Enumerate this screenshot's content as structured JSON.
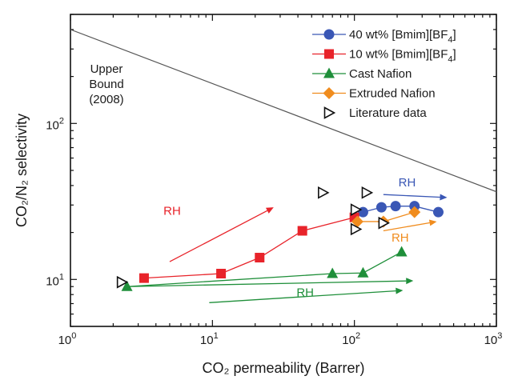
{
  "chart_data": {
    "type": "scatter",
    "x_scale": "log",
    "y_scale": "log",
    "xlim": [
      1,
      1000
    ],
    "ylim": [
      5,
      500
    ],
    "xlabel": "CO₂ permeability (Barrer)",
    "ylabel": "CO₂/N₂ selectivity",
    "x_ticks": [
      {
        "value": 1,
        "base": "10",
        "exp": "0"
      },
      {
        "value": 10,
        "base": "10",
        "exp": "1"
      },
      {
        "value": 100,
        "base": "10",
        "exp": "2"
      },
      {
        "value": 1000,
        "base": "10",
        "exp": "3"
      }
    ],
    "y_ticks": [
      {
        "value": 10,
        "base": "10",
        "exp": "1"
      },
      {
        "value": 100,
        "base": "10",
        "exp": "2"
      }
    ],
    "legend_position": "top-right",
    "series": [
      {
        "name": "40 wt% [Bmim][BF₄]",
        "color": "#3a57b5",
        "marker": "circle",
        "connected": true,
        "x": [
          115,
          155,
          195,
          265,
          390
        ],
        "y": [
          27,
          29,
          29.5,
          29.5,
          27
        ]
      },
      {
        "name": "10 wt% [Bmim][BF₄]",
        "color": "#e8232a",
        "marker": "square",
        "connected": true,
        "x": [
          3.3,
          11.5,
          21.5,
          43,
          100
        ],
        "y": [
          10.2,
          10.9,
          13.8,
          20.5,
          25
        ]
      },
      {
        "name": "Cast Nafion",
        "color": "#1f8f3a",
        "marker": "triangle",
        "connected": true,
        "x": [
          2.5,
          70,
          115,
          215
        ],
        "y": [
          9,
          10.9,
          11,
          15
        ]
      },
      {
        "name": "Extruded Nafion",
        "color": "#f08c1e",
        "marker": "diamond",
        "connected": true,
        "x": [
          105,
          160,
          265
        ],
        "y": [
          23.5,
          23.5,
          27
        ]
      },
      {
        "name": "Literature data",
        "color": "#111111",
        "marker": "triangle-right-open",
        "connected": false,
        "x": [
          2.3,
          60,
          102,
          122,
          102,
          160
        ],
        "y": [
          9.6,
          36,
          28,
          36,
          21,
          23
        ]
      }
    ],
    "upper_bound": {
      "label_lines": [
        "Upper",
        "Bound",
        "(2008)"
      ],
      "color": "#555555",
      "x": [
        1,
        1000
      ],
      "y": [
        400,
        36.5
      ]
    },
    "annotations": [
      {
        "text": "RH",
        "color": "#e8232a",
        "x": 5.2,
        "y": 26
      },
      {
        "text": "RH",
        "color": "#3a57b5",
        "x": 235,
        "y": 39.5
      },
      {
        "text": "RH",
        "color": "#f08c1e",
        "x": 210,
        "y": 17.5
      },
      {
        "text": "RH",
        "color": "#1f8f3a",
        "x": 45,
        "y": 7.8
      }
    ],
    "arrows": [
      {
        "color": "#e8232a",
        "from": [
          5,
          13
        ],
        "to": [
          27,
          29
        ]
      },
      {
        "color": "#3a57b5",
        "from": [
          160,
          35
        ],
        "to": [
          450,
          33.5
        ]
      },
      {
        "color": "#f08c1e",
        "from": [
          160,
          20.5
        ],
        "to": [
          380,
          23.5
        ]
      },
      {
        "color": "#1f8f3a",
        "from": [
          2.5,
          9
        ],
        "to": [
          260,
          9.8
        ]
      },
      {
        "color": "#1f8f3a",
        "from": [
          9.5,
          7.1
        ],
        "to": [
          220,
          8.5
        ]
      }
    ]
  }
}
